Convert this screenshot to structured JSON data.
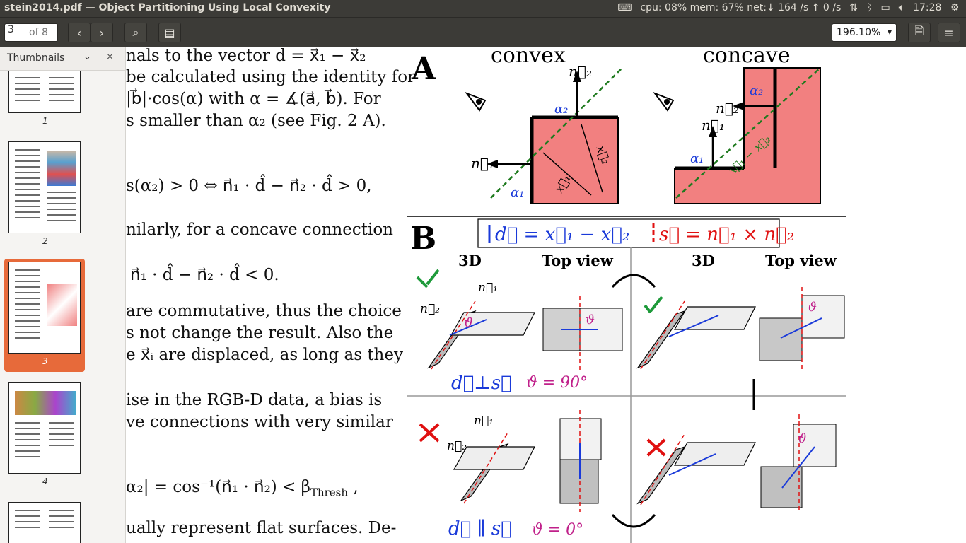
{
  "window": {
    "title": "stein2014.pdf — Object Partitioning Using Local Convexity",
    "indicators": {
      "cpu": "cpu: 08% mem: 67% net:↓ 164 /s ↑  0 /s",
      "time": "17:28"
    }
  },
  "toolbar": {
    "page_value": "3",
    "page_of": "of 8",
    "zoom_value": "196.10%"
  },
  "sidebar": {
    "header_label": "Thumbnails",
    "pages": [
      "1",
      "2",
      "3",
      "4"
    ]
  },
  "document": {
    "lines": [
      "nals to the vector d = x⃗₁ − x⃗₂",
      "be calculated using the identity for",
      "|b⃗|·cos(α) with α = ∡(a⃗, b⃗). For",
      "s smaller than α₂ (see Fig. 2 A).",
      "s(α₂) > 0 ⇔ n⃗₁ · d̂ − n⃗₂ · d̂ > 0,",
      "nilarly, for a concave connection",
      "n⃗₁ · d̂ − n⃗₂ · d̂ < 0.",
      "are commutative, thus the choice",
      "s not change the result. Also the",
      "e x⃗ᵢ are displaced, as long as they",
      "ise in the RGB-D data, a bias is",
      "ve connections with very similar",
      "α₂| = cos⁻¹(n⃗₁ · n⃗₂) < β",
      "ually represent flat surfaces. De-"
    ],
    "thresh_sub": "Thresh",
    "fig_ref": "2"
  },
  "figure": {
    "panel_a": "A",
    "panel_b": "B",
    "convex": "convex",
    "concave": "concave",
    "n2": "n⃗₂",
    "n1": "n⃗₁",
    "a1": "α₁",
    "a2": "α₂",
    "x1": "x⃗₁",
    "x2": "x⃗₂",
    "x1mx2": "x⃗₁ − x⃗₂",
    "legend_d": "d⃗ = x⃗₁ − x⃗₂",
    "legend_s": "s⃗ = n⃗₁ × n⃗₂",
    "col_3d": "3D",
    "col_top": "Top view",
    "theta": "ϑ",
    "perp": "d⃗⊥s⃗",
    "theta90": "ϑ = 90°",
    "parallel": "d⃗ ∥ s⃗",
    "theta0": "ϑ = 0°"
  }
}
